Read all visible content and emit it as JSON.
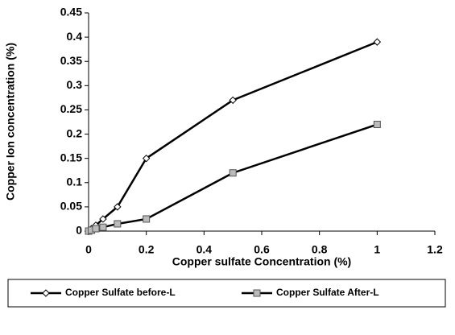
{
  "chart_data": {
    "type": "line",
    "x_label": "Copper sulfate Concentration (%)",
    "y_label": "Copper Ion concentration (%)",
    "x": [
      0,
      0.01,
      0.025,
      0.05,
      0.1,
      0.2,
      0.5,
      1
    ],
    "series": [
      {
        "name": "Copper Sulfate before-L",
        "color": "#000000",
        "marker": "diamond",
        "values": [
          0,
          0.005,
          0.012,
          0.025,
          0.05,
          0.15,
          0.27,
          0.39
        ]
      },
      {
        "name": "Copper Sulfate After-L",
        "color": "#000000",
        "marker": "square",
        "values": [
          0,
          0.002,
          0.005,
          0.008,
          0.015,
          0.025,
          0.12,
          0.22
        ]
      }
    ],
    "xlim": [
      0,
      1.2
    ],
    "xticks": [
      0,
      0.2,
      0.4,
      0.6,
      0.8,
      1,
      1.2
    ],
    "ylim": [
      0,
      0.45
    ],
    "yticks": [
      0,
      0.05,
      0.1,
      0.15,
      0.2,
      0.25,
      0.3,
      0.35,
      0.4,
      0.45
    ],
    "grid": false,
    "legend": "bottom"
  }
}
